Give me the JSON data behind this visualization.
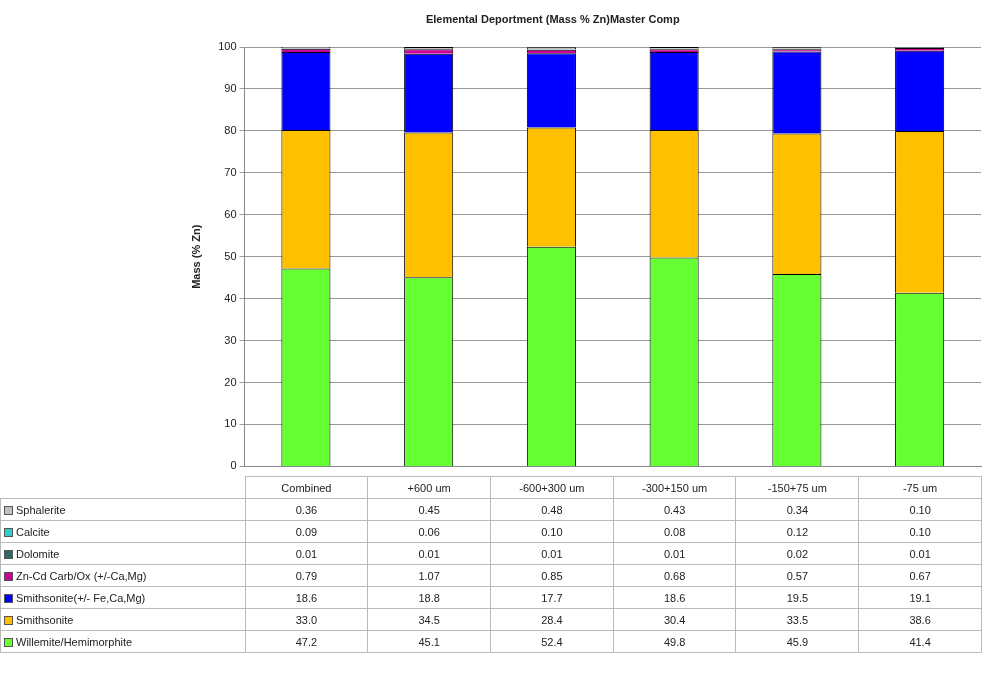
{
  "chart_data": {
    "type": "bar",
    "title": "Elemental Deportment (Mass % Zn)Master Comp",
    "ylabel": "Mass (% Zn)",
    "categories": [
      "Combined",
      "+600 um",
      "-600+300 um",
      "-300+150 um",
      "-150+75 um",
      "-75 um"
    ],
    "stacked": true,
    "ylim": [
      0,
      100
    ],
    "yticks": [
      0,
      10,
      20,
      30,
      40,
      50,
      60,
      70,
      80,
      90,
      100
    ],
    "grid": "y",
    "legend": "bottom",
    "series": [
      {
        "name": "Willemite/Hemimorphite",
        "color": "#66ff33",
        "values": [
          47.2,
          45.1,
          52.4,
          49.8,
          45.9,
          41.4
        ],
        "value_labels": [
          "47.2",
          "45.1",
          "52.4",
          "49.8",
          "45.9",
          "41.4"
        ]
      },
      {
        "name": "Smithsonite",
        "color": "#ffc000",
        "values": [
          33.0,
          34.5,
          28.4,
          30.4,
          33.5,
          38.6
        ],
        "value_labels": [
          "33.0",
          "34.5",
          "28.4",
          "30.4",
          "33.5",
          "38.6"
        ]
      },
      {
        "name": "Smithsonite(+/- Fe,Ca,Mg)",
        "color": "#0000ff",
        "values": [
          18.6,
          18.8,
          17.7,
          18.6,
          19.5,
          19.1
        ],
        "value_labels": [
          "18.6",
          "18.8",
          "17.7",
          "18.6",
          "19.5",
          "19.1"
        ]
      },
      {
        "name": "Zn-Cd Carb/Ox (+/-Ca,Mg)",
        "color": "#cc0099",
        "values": [
          0.79,
          1.07,
          0.85,
          0.68,
          0.57,
          0.67
        ],
        "value_labels": [
          "0.79",
          "1.07",
          "0.85",
          "0.68",
          "0.57",
          "0.67"
        ]
      },
      {
        "name": "Dolomite",
        "color": "#336666",
        "values": [
          0.01,
          0.01,
          0.01,
          0.01,
          0.02,
          0.01
        ],
        "value_labels": [
          "0.01",
          "0.01",
          "0.01",
          "0.01",
          "0.02",
          "0.01"
        ]
      },
      {
        "name": "Calcite",
        "color": "#33cccc",
        "values": [
          0.09,
          0.06,
          0.1,
          0.08,
          0.12,
          0.1
        ],
        "value_labels": [
          "0.09",
          "0.06",
          "0.10",
          "0.08",
          "0.12",
          "0.10"
        ]
      },
      {
        "name": "Sphalerite",
        "color": "#c0c0c0",
        "values": [
          0.36,
          0.45,
          0.48,
          0.43,
          0.34,
          0.1
        ],
        "value_labels": [
          "0.36",
          "0.45",
          "0.48",
          "0.43",
          "0.34",
          "0.10"
        ]
      }
    ]
  }
}
